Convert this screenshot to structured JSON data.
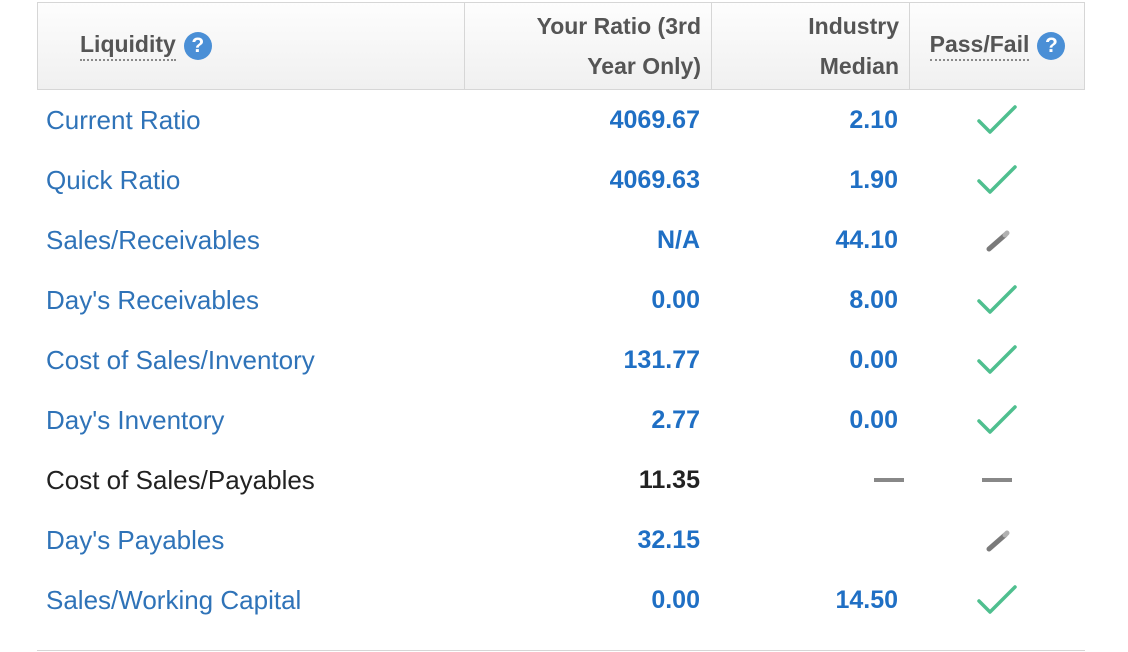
{
  "header": {
    "liquidity_label": "Liquidity",
    "ratio_label_line1": "Your Ratio (3rd",
    "ratio_label_line2": "Year Only)",
    "median_label_line1": "Industry",
    "median_label_line2": "Median",
    "pass_label": "Pass/Fail",
    "help_symbol": "?"
  },
  "rows": [
    {
      "label": "Current Ratio",
      "ratio": "4069.67",
      "median": "2.10",
      "status": "check"
    },
    {
      "label": "Quick Ratio",
      "ratio": "4069.63",
      "median": "1.90",
      "status": "check"
    },
    {
      "label": "Sales/Receivables",
      "ratio": "N/A",
      "median": "44.10",
      "status": "pencil"
    },
    {
      "label": "Day's Receivables",
      "ratio": "0.00",
      "median": "8.00",
      "status": "check"
    },
    {
      "label": "Cost of Sales/Inventory",
      "ratio": "131.77",
      "median": "0.00",
      "status": "check"
    },
    {
      "label": "Day's Inventory",
      "ratio": "2.77",
      "median": "0.00",
      "status": "check"
    },
    {
      "label": "Cost of Sales/Payables",
      "ratio": "11.35",
      "median": "",
      "status": "dash",
      "median_dash": true
    },
    {
      "label": "Day's Payables",
      "ratio": "32.15",
      "median": "",
      "status": "pencil"
    },
    {
      "label": "Sales/Working Capital",
      "ratio": "0.00",
      "median": "14.50",
      "status": "check"
    }
  ],
  "colors": {
    "link_blue": "#2f73b8",
    "value_blue": "#1f6fc4",
    "check_green": "#4fbf8f",
    "help_blue": "#4a8fd6",
    "dash_gray": "#888888"
  }
}
